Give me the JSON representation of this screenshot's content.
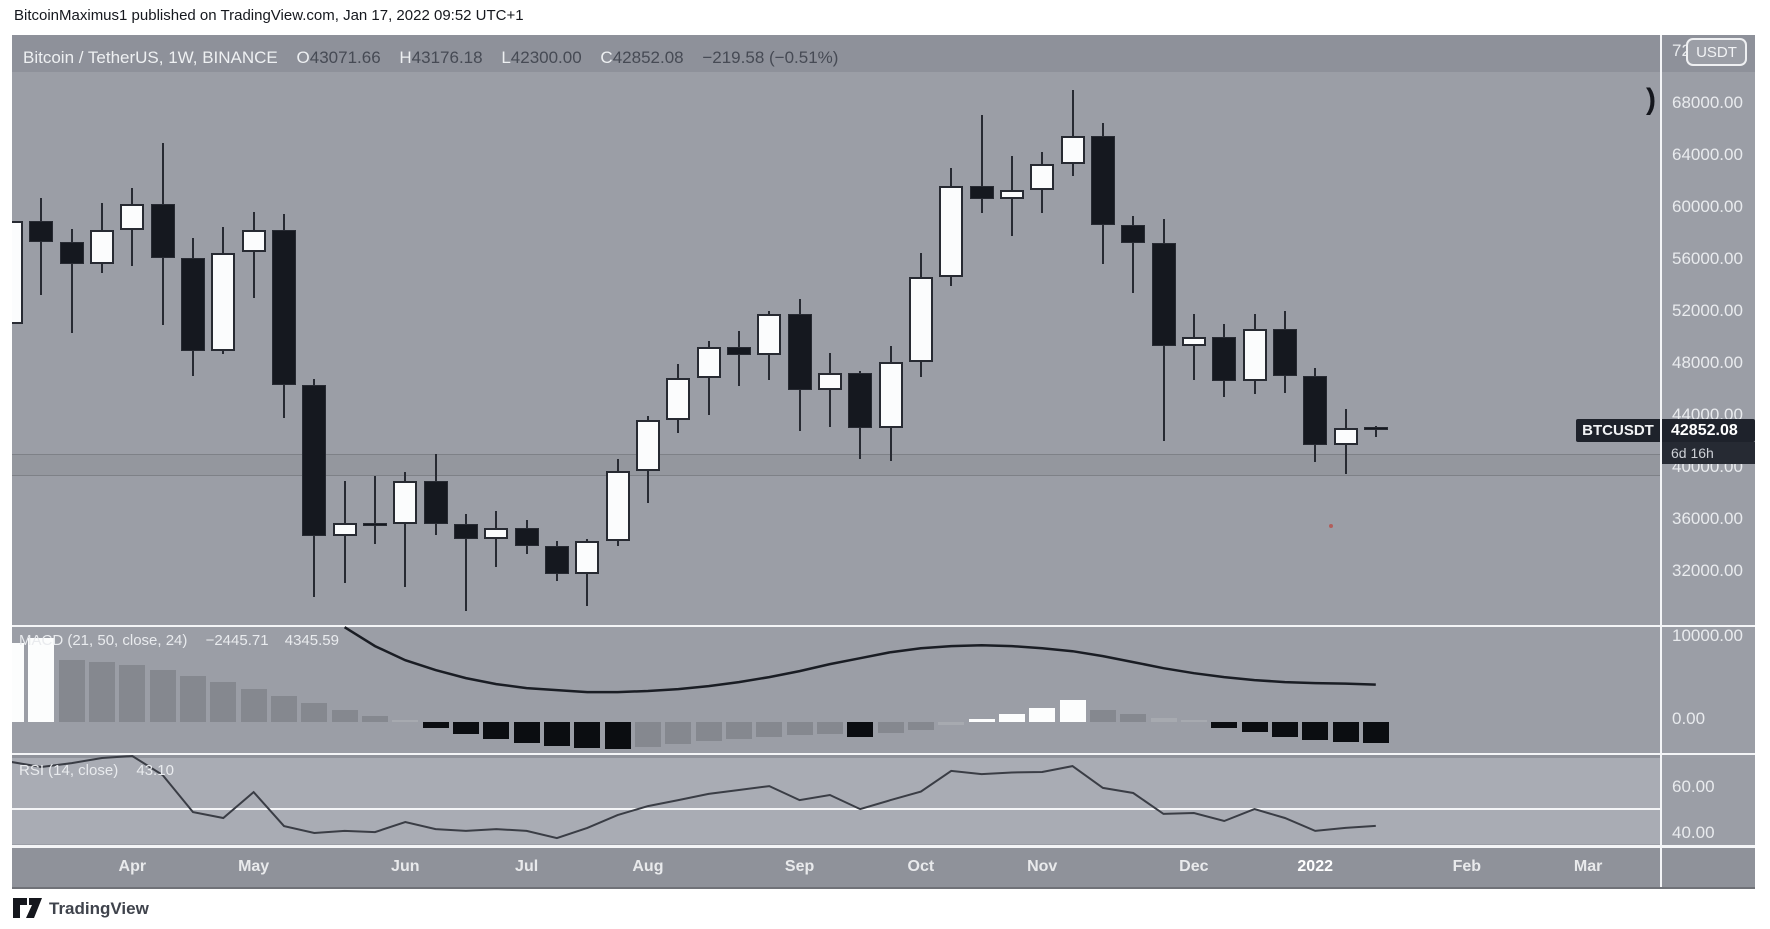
{
  "header": {
    "published_line": "BitcoinMaximus1 published on TradingView.com, Jan 17, 2022 09:52 UTC+1"
  },
  "legend": {
    "symbol": "Bitcoin / TetherUS, 1W, BINANCE",
    "o_label": "O",
    "o_value": "43071.66",
    "h_label": "H",
    "h_value": "43176.18",
    "l_label": "L",
    "l_value": "42300.00",
    "c_label": "C",
    "c_value": "42852.08",
    "change": "−219.58 (−0.51%)"
  },
  "price_axis": {
    "currency_button": "USDT",
    "top_label": "72000.00",
    "marker": ")",
    "labels": [
      "68000.00",
      "64000.00",
      "60000.00",
      "56000.00",
      "52000.00",
      "48000.00",
      "44000.00",
      "40000.00",
      "36000.00",
      "32000.00"
    ]
  },
  "price_tag": {
    "symbol": "BTCUSDT",
    "price": "42852.08",
    "countdown": "6d 16h"
  },
  "macd_panel": {
    "title": "MACD (21, 50, close, 24)",
    "value1": "−2445.71",
    "value2": "4345.59",
    "axis": [
      "10000.00",
      "0.00"
    ]
  },
  "rsi_panel": {
    "title": "RSI (14, close)",
    "value": "43.10",
    "axis": [
      "60.00",
      "40.00"
    ]
  },
  "footer": {
    "brand": "TradingView"
  },
  "colors": {
    "up": "#fbfcfd",
    "down": "#15181f",
    "wick": "#272a32",
    "bg": "#9b9ea6",
    "macd_white": "#fcfdfd",
    "macd_gray": "#85888f",
    "macd_lightgray": "#a7aab0",
    "macd_black": "#0b0d11",
    "macd_line": "#1a1d24",
    "rsi_line": "#3a3d45"
  },
  "chart_data": {
    "type": "candlestick",
    "symbol": "BTCUSDT",
    "interval": "1W",
    "exchange": "BINANCE",
    "title": "Bitcoin / TetherUS weekly with MACD and RSI",
    "price_axis_ticks": [
      68000,
      64000,
      60000,
      56000,
      52000,
      48000,
      44000,
      40000,
      36000,
      32000
    ],
    "support_zone": [
      39500,
      41000
    ],
    "last_price": 42852.08,
    "candles": [
      [
        51000,
        60200,
        49400,
        58900
      ],
      [
        58900,
        60700,
        53200,
        57300
      ],
      [
        57300,
        58300,
        50300,
        55600
      ],
      [
        55600,
        60300,
        54900,
        58200
      ],
      [
        58200,
        61500,
        55500,
        60200
      ],
      [
        60200,
        64900,
        50900,
        56100
      ],
      [
        56100,
        57600,
        47000,
        48900
      ],
      [
        48900,
        58500,
        48700,
        56500
      ],
      [
        56500,
        59600,
        53000,
        58200
      ],
      [
        58200,
        59500,
        43800,
        46300
      ],
      [
        46300,
        46800,
        30000,
        34700
      ],
      [
        34700,
        38900,
        31100,
        35700
      ],
      [
        35700,
        39300,
        34100,
        35600
      ],
      [
        35600,
        39600,
        30800,
        38900
      ],
      [
        38900,
        41000,
        34800,
        35600
      ],
      [
        35600,
        36400,
        28900,
        34500
      ],
      [
        34500,
        36600,
        32300,
        35300
      ],
      [
        35300,
        35900,
        33300,
        33900
      ],
      [
        33900,
        34300,
        31200,
        31800
      ],
      [
        31800,
        34500,
        29300,
        34300
      ],
      [
        34300,
        40600,
        33900,
        39700
      ],
      [
        39700,
        43900,
        37200,
        43600
      ],
      [
        43600,
        47900,
        42600,
        46850
      ],
      [
        46850,
        49700,
        44000,
        49200
      ],
      [
        49200,
        50500,
        46200,
        48600
      ],
      [
        48600,
        52000,
        46700,
        51800
      ],
      [
        51800,
        52900,
        42800,
        45900
      ],
      [
        45900,
        48800,
        43100,
        47200
      ],
      [
        47200,
        47400,
        40600,
        43000
      ],
      [
        43000,
        49300,
        40500,
        48100
      ],
      [
        48100,
        56500,
        46900,
        54600
      ],
      [
        54600,
        63000,
        53900,
        61600
      ],
      [
        61600,
        67100,
        59500,
        60600
      ],
      [
        60600,
        63900,
        57800,
        61300
      ],
      [
        61300,
        64200,
        59500,
        63300
      ],
      [
        63300,
        69000,
        62400,
        65500
      ],
      [
        65500,
        66500,
        55600,
        58600
      ],
      [
        58600,
        59300,
        53400,
        57200
      ],
      [
        57200,
        59100,
        42000,
        49300
      ],
      [
        49300,
        51800,
        46700,
        50000
      ],
      [
        50000,
        51000,
        45400,
        46600
      ],
      [
        46600,
        51800,
        45600,
        50600
      ],
      [
        50600,
        52000,
        45700,
        47000
      ],
      [
        47000,
        47600,
        40400,
        41700
      ],
      [
        41700,
        44500,
        39500,
        43000
      ],
      [
        43071.66,
        43176.18,
        42300,
        42852.08
      ]
    ],
    "macd": {
      "params": "21, 50, close, 24",
      "current_histogram": -2445.71,
      "current_line": 4345.59,
      "histogram": [
        9200,
        9800,
        7200,
        6960,
        6600,
        6000,
        5340,
        4640,
        3830,
        3020,
        2200,
        1390,
        700,
        230,
        -700,
        -1400,
        -1970,
        -2440,
        -2790,
        -3020,
        -3130,
        -2900,
        -2550,
        -2250,
        -1950,
        -1700,
        -1500,
        -1350,
        -1700,
        -1300,
        -900,
        -350,
        350,
        900,
        1600,
        2600,
        1400,
        900,
        500,
        230,
        -700,
        -1200,
        -1700,
        -2100,
        -2300,
        -2446
      ],
      "histogram_colors": [
        "white",
        "white",
        "gray",
        "gray",
        "gray",
        "gray",
        "gray",
        "gray",
        "gray",
        "gray",
        "gray",
        "gray",
        "gray",
        "lightgray",
        "black",
        "black",
        "black",
        "black",
        "black",
        "black",
        "black",
        "gray",
        "gray",
        "gray",
        "gray",
        "gray",
        "gray",
        "gray",
        "black",
        "gray",
        "gray",
        "lightgray",
        "white",
        "white",
        "white",
        "white",
        "gray",
        "gray",
        "lightgray",
        "lightgray",
        "black",
        "black",
        "black",
        "black",
        "black",
        "black"
      ],
      "line_start_index": 11,
      "line": [
        11020,
        8820,
        7190,
        6030,
        5100,
        4410,
        3940,
        3710,
        3480,
        3480,
        3600,
        3830,
        4180,
        4640,
        5220,
        5920,
        6730,
        7420,
        8120,
        8580,
        8820,
        8930,
        8820,
        8580,
        8235,
        7660,
        6960,
        6260,
        5680,
        5220,
        4870,
        4640,
        4520,
        4460,
        4345.59
      ]
    },
    "rsi": {
      "params": "14, close",
      "current": 43.1,
      "values": [
        70.9,
        68.7,
        70.4,
        72.6,
        73.5,
        65.2,
        49.1,
        46.5,
        57.8,
        43.0,
        40.0,
        40.9,
        40.4,
        44.8,
        41.7,
        40.9,
        41.7,
        40.9,
        37.8,
        42.2,
        47.8,
        51.7,
        54.3,
        57.0,
        58.7,
        60.4,
        54.3,
        56.5,
        50.4,
        54.3,
        58.0,
        67.0,
        65.6,
        66.3,
        66.5,
        69.1,
        59.6,
        57.4,
        48.3,
        48.7,
        45.2,
        50.4,
        46.5,
        40.9,
        42.2,
        43.1
      ]
    },
    "time_axis_ticks": [
      {
        "label": "Apr",
        "k": 4
      },
      {
        "label": "May",
        "k": 8
      },
      {
        "label": "Jun",
        "k": 13
      },
      {
        "label": "Jul",
        "k": 17
      },
      {
        "label": "Aug",
        "k": 21
      },
      {
        "label": "Sep",
        "k": 26
      },
      {
        "label": "Oct",
        "k": 30
      },
      {
        "label": "Nov",
        "k": 34
      },
      {
        "label": "Dec",
        "k": 39
      },
      {
        "label": "2022",
        "k": 43
      },
      {
        "label": "Feb",
        "k": 48
      },
      {
        "label": "Mar",
        "k": 52
      }
    ]
  }
}
